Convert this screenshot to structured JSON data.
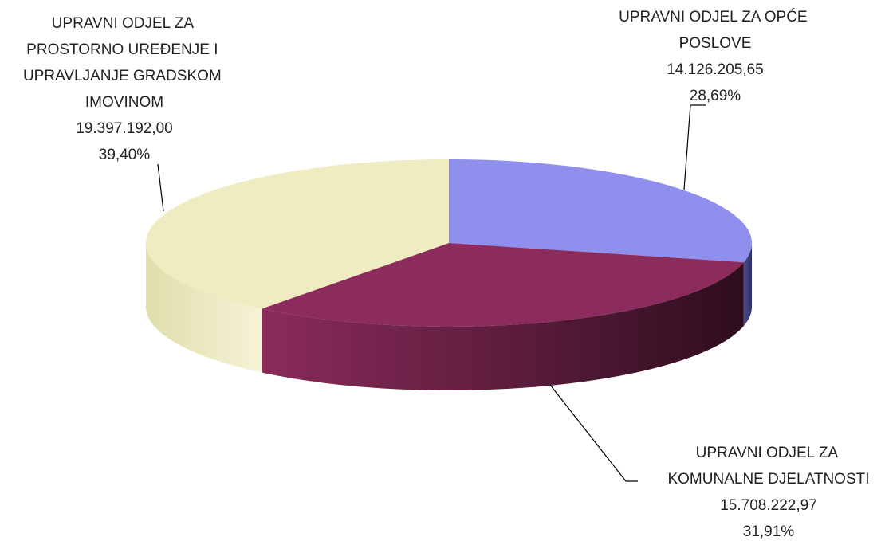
{
  "chart_data": {
    "type": "pie3d",
    "categories": [
      "UPRAVNI ODJEL ZA OPĆE POSLOVE",
      "UPRAVNI ODJEL ZA KOMUNALNE DJELATNOSTI",
      "UPRAVNI ODJEL ZA PROSTORNO UREĐENJE I UPRAVLJANJE GRADSKOM IMOVINOM"
    ],
    "values": [
      14126205.65,
      15708222.97,
      19397192.0
    ],
    "value_labels": [
      "14.126.205,65",
      "15.708.222,97",
      "19.397.192,00"
    ],
    "percentages": [
      28.69,
      31.91,
      39.4
    ],
    "percentage_labels": [
      "28,69%",
      "31,91%",
      "39,40%"
    ],
    "colors": [
      "#8f8fee",
      "#8b2c5c",
      "#eeecc0"
    ]
  }
}
